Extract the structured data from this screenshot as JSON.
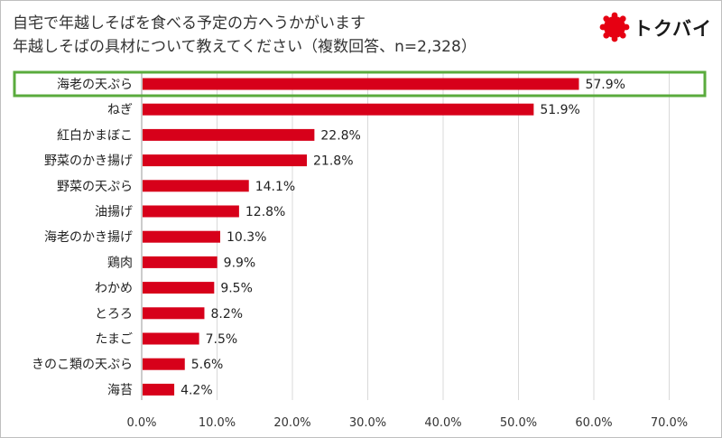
{
  "title_lines": [
    "自宅で年越しそばを食べる予定の方へうかがいます",
    "年越しそばの具材について教えてください（複数回答、n=2,328）"
  ],
  "logo": {
    "text": "トクバイ",
    "icon": "tokubai-logo-icon",
    "color": "#e60012"
  },
  "chart_data": {
    "type": "bar",
    "orientation": "horizontal",
    "categories": [
      "海老の天ぷら",
      "ねぎ",
      "紅白かまぼこ",
      "野菜のかき揚げ",
      "野菜の天ぷら",
      "油揚げ",
      "海老のかき揚げ",
      "鶏肉",
      "わかめ",
      "とろろ",
      "たまご",
      "きのこ類の天ぷら",
      "海苔"
    ],
    "values": [
      57.9,
      51.9,
      22.8,
      21.8,
      14.1,
      12.8,
      10.3,
      9.9,
      9.5,
      8.2,
      7.5,
      5.6,
      4.2
    ],
    "value_labels": [
      "57.9%",
      "51.9%",
      "22.8%",
      "21.8%",
      "14.1%",
      "12.8%",
      "10.3%",
      "9.9%",
      "9.5%",
      "8.2%",
      "7.5%",
      "5.6%",
      "4.2%"
    ],
    "xlim": [
      0,
      70
    ],
    "xticks": [
      0,
      10,
      20,
      30,
      40,
      50,
      60,
      70
    ],
    "xtick_labels": [
      "0.0%",
      "10.0%",
      "20.0%",
      "30.0%",
      "40.0%",
      "50.0%",
      "60.0%",
      "70.0%"
    ],
    "grid": "vertical",
    "highlighted_category": "海老の天ぷら",
    "colors": {
      "bar": "#d7001a",
      "highlight_border": "#5aab3d",
      "grid": "#d9d9d9"
    }
  }
}
